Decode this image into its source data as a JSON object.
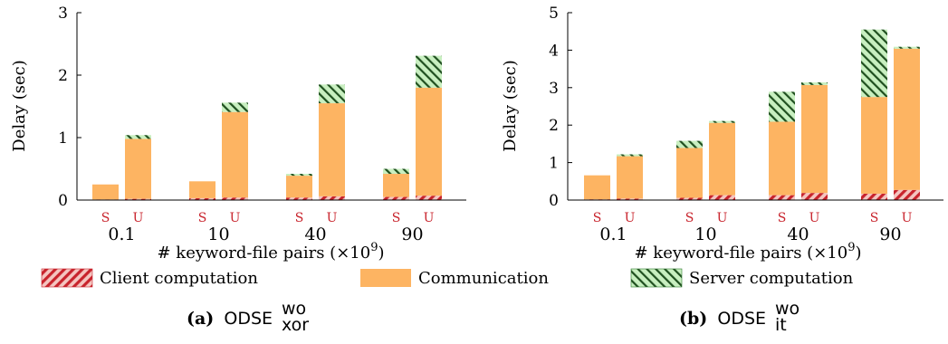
{
  "colors": {
    "client": "#c8232c",
    "client_hatch_bg": "#f4c5c0",
    "communication": "#fdb462",
    "server": "#2f7a2f",
    "server_hatch_bg": "#c8efc0",
    "bar_label": "#c8232c"
  },
  "legend": {
    "client": "Client computation",
    "communication": "Communication",
    "server": "Server computation"
  },
  "captions": [
    {
      "tag": "(a)",
      "name": "ODSE",
      "sup": "wo",
      "sub": "xor"
    },
    {
      "tag": "(b)",
      "name": "ODSE",
      "sup": "wo",
      "sub": "it"
    }
  ],
  "chart_data": [
    {
      "type": "bar",
      "stacked": true,
      "ylabel": "Delay (sec)",
      "xlabel": "# keyword-file pairs (×10",
      "xlabel_sup": "9",
      "xlabel_end": ")",
      "ylim": [
        0,
        3
      ],
      "yticks": [
        "0",
        "1",
        "2",
        "3"
      ],
      "categories": [
        "0.1",
        "10",
        "40",
        "90"
      ],
      "bar_labels": [
        "S",
        "U"
      ],
      "series": [
        {
          "name": "Client computation",
          "key": "client",
          "values": [
            [
              0.01,
              0.02
            ],
            [
              0.03,
              0.04
            ],
            [
              0.04,
              0.06
            ],
            [
              0.05,
              0.07
            ]
          ]
        },
        {
          "name": "Communication",
          "key": "communication",
          "values": [
            [
              0.24,
              0.96
            ],
            [
              0.27,
              1.37
            ],
            [
              0.35,
              1.49
            ],
            [
              0.37,
              1.73
            ]
          ]
        },
        {
          "name": "Server computation",
          "key": "server",
          "values": [
            [
              0.0,
              0.06
            ],
            [
              0.0,
              0.15
            ],
            [
              0.03,
              0.3
            ],
            [
              0.08,
              0.51
            ]
          ]
        }
      ]
    },
    {
      "type": "bar",
      "stacked": true,
      "ylabel": "Delay (sec)",
      "xlabel": "# keyword-file pairs (×10",
      "xlabel_sup": "9",
      "xlabel_end": ")",
      "ylim": [
        0,
        5
      ],
      "yticks": [
        "0",
        "1",
        "2",
        "3",
        "4",
        "5"
      ],
      "categories": [
        "0.1",
        "10",
        "40",
        "90"
      ],
      "bar_labels": [
        "S",
        "U"
      ],
      "series": [
        {
          "name": "Client computation",
          "key": "client",
          "values": [
            [
              0.02,
              0.04
            ],
            [
              0.06,
              0.13
            ],
            [
              0.13,
              0.19
            ],
            [
              0.17,
              0.27
            ]
          ]
        },
        {
          "name": "Communication",
          "key": "communication",
          "values": [
            [
              0.64,
              1.13
            ],
            [
              1.33,
              1.93
            ],
            [
              1.96,
              2.88
            ],
            [
              2.58,
              3.77
            ]
          ]
        },
        {
          "name": "Server computation",
          "key": "server",
          "values": [
            [
              0.0,
              0.05
            ],
            [
              0.19,
              0.05
            ],
            [
              0.8,
              0.07
            ],
            [
              1.8,
              0.05
            ]
          ]
        }
      ]
    }
  ]
}
